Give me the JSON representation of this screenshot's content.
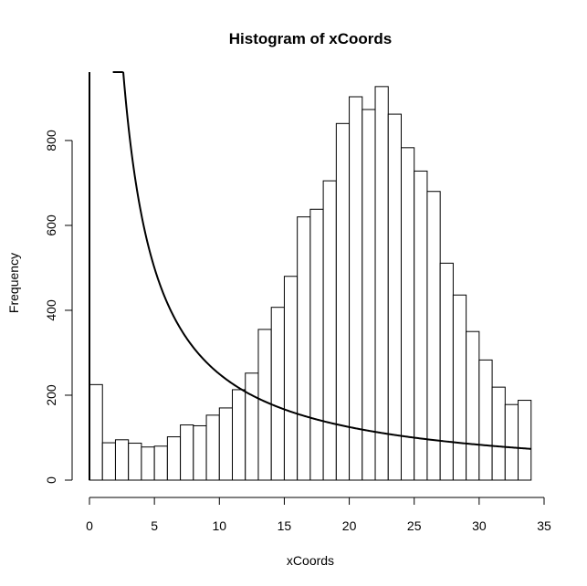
{
  "chart_data": {
    "type": "bar",
    "title": "Histogram of xCoords",
    "xlabel": "xCoords",
    "ylabel": "Frequency",
    "xlim": [
      0,
      35
    ],
    "ylim": [
      0,
      960
    ],
    "x_ticks": [
      0,
      5,
      10,
      15,
      20,
      25,
      30,
      35
    ],
    "y_ticks": [
      0,
      200,
      400,
      600,
      800
    ],
    "bin_width": 1,
    "bin_start": 0,
    "values": [
      225,
      88,
      95,
      87,
      78,
      80,
      102,
      130,
      128,
      153,
      170,
      213,
      252,
      355,
      407,
      480,
      620,
      638,
      705,
      840,
      903,
      873,
      927,
      862,
      783,
      728,
      680,
      511,
      436,
      350,
      283,
      219,
      178,
      188
    ],
    "curve": {
      "description_formula": "y = k / x",
      "k": 2500,
      "x_range": [
        1.8,
        34
      ]
    },
    "vertical_line_x": 0,
    "grid": false,
    "legend": "none"
  }
}
